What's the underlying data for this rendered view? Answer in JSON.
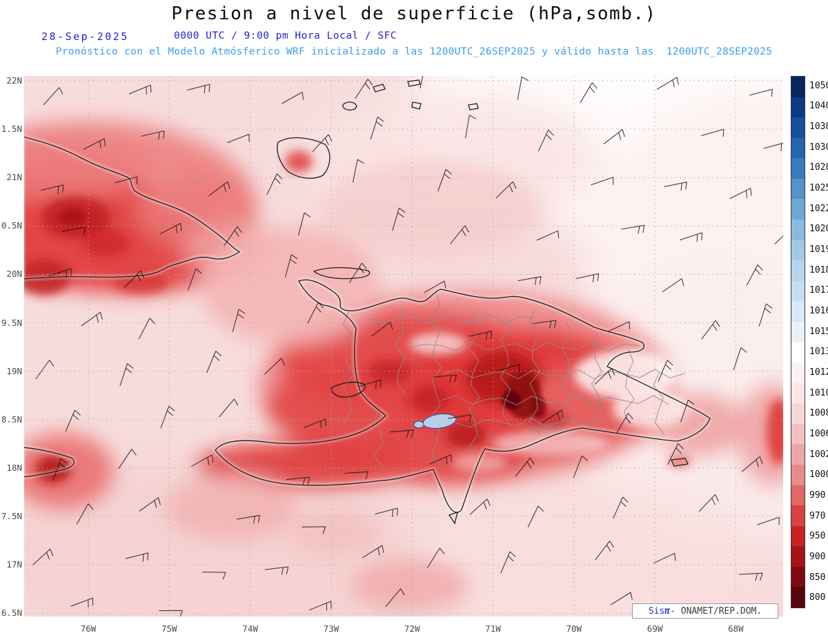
{
  "header": {
    "title": "Presion a nivel de superficie (hPa,somb.)",
    "valid_date": "28-Sep-2025",
    "valid_time": "0000 UTC / 9:00 pm Hora Local / SFC",
    "model_line": "Pronóstico con el Modelo Atmósferico WRF inicializado a las 1200UTC_26SEP2025 y válido hasta las  1200UTC_28SEP2025"
  },
  "branding": {
    "sis": "Sis",
    "pi": "π",
    "org": "- ONAMET/REP.DOM."
  },
  "chart_data": {
    "type": "heatmap",
    "title": "Presion a nivel de superficie (hPa,somb.)",
    "variable": "surface pressure (shaded)",
    "units": "hPa",
    "valid": "28-Sep-2025 0000 UTC / 9:00 pm Hora Local / SFC",
    "model_run": "WRF inicializado 1200UTC_26SEP2025",
    "valid_until": "1200UTC_28SEP2025",
    "lat_ticks": [
      "22N",
      "1.5N",
      "21N",
      "0.5N",
      "20N",
      "9.5N",
      "19N",
      "8.5N",
      "18N",
      "7.5N",
      "17N",
      "6.5N"
    ],
    "lon_ticks": [
      "76W",
      "75W",
      "74W",
      "73W",
      "72W",
      "71W",
      "70W",
      "69W",
      "68W"
    ],
    "colorbar": {
      "labels": [
        "1050",
        "1040",
        "1038",
        "1030",
        "1028",
        "1025",
        "1022",
        "1020",
        "1019",
        "1018",
        "1017",
        "1016",
        "1015",
        "1013",
        "1012",
        "1010",
        "1008",
        "1006",
        "1002",
        "1000",
        "990",
        "970",
        "950",
        "900",
        "850",
        "800"
      ],
      "colors": [
        "#08265e",
        "#0d3a85",
        "#16509c",
        "#2465af",
        "#387bbe",
        "#5492ca",
        "#70a7d4",
        "#8bbadf",
        "#a2c9e7",
        "#b5d4ed",
        "#c7def1",
        "#d8e8f6",
        "#e9f1fa",
        "#ffffff",
        "#fdf2f2",
        "#fbe6e6",
        "#f8d6d6",
        "#f4c0c1",
        "#efa6a7",
        "#e98a8c",
        "#e16765",
        "#d84241",
        "#c62424",
        "#a51419",
        "#7e0a12",
        "#57040e"
      ]
    },
    "overlays": [
      "wind barbs",
      "coastlines",
      "province borders",
      "dotted lat-lon grid",
      "Lake Enriquillo (blue)"
    ],
    "shading_summary": "Low pressure (below ~1008 hPa) shaded pink to dark red over eastern Cuba, Hispaniola and eastern Jamaica, darkest red cores over central Dominican Republic; near 1012-1013 hPa (white) over the northeast Atlantic corner"
  },
  "grid": {
    "lat_count": 12,
    "lon_count": 9
  }
}
